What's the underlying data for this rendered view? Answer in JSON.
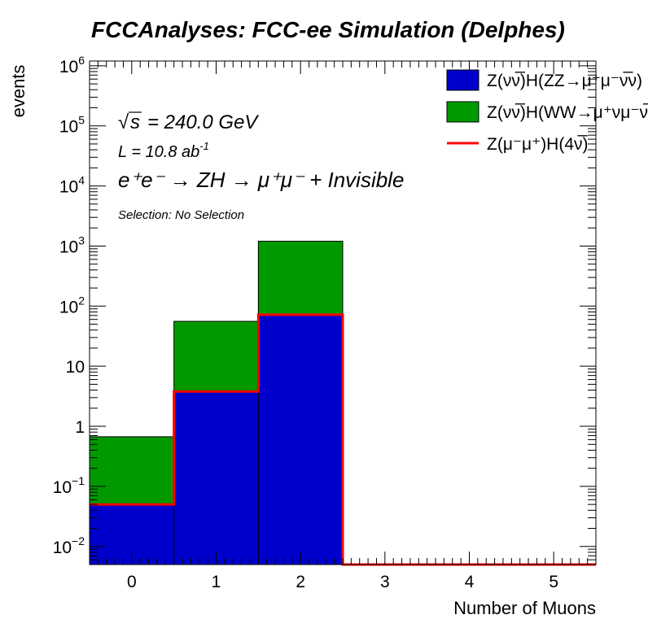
{
  "chart_data": {
    "type": "bar",
    "stacked": true,
    "log_y": true,
    "title": "FCCAnalyses: FCC-ee Simulation (Delphes)",
    "xlabel": "Number of Muons",
    "ylabel": "events",
    "xlim": [
      -0.5,
      5.5
    ],
    "ylim": [
      0.005,
      1200000
    ],
    "x_ticks": [
      "0",
      "1",
      "2",
      "3",
      "4",
      "5"
    ],
    "y_ticks": [
      {
        "value": 0.01,
        "base": "10",
        "exp": "−2"
      },
      {
        "value": 0.1,
        "base": "10",
        "exp": "−1"
      },
      {
        "value": 1,
        "base": "1",
        "exp": ""
      },
      {
        "value": 10,
        "base": "10",
        "exp": ""
      },
      {
        "value": 100,
        "base": "10",
        "exp": "2"
      },
      {
        "value": 1000,
        "base": "10",
        "exp": "3"
      },
      {
        "value": 10000,
        "base": "10",
        "exp": "4"
      },
      {
        "value": 100000,
        "base": "10",
        "exp": "5"
      },
      {
        "value": 1000000,
        "base": "10",
        "exp": "6"
      }
    ],
    "categories": [
      0,
      1,
      2,
      3,
      4,
      5
    ],
    "series": [
      {
        "name": "Z(νν̅)H(ZZ→μ⁺μ⁻ν̅ν)",
        "kind": "stack",
        "color": "#0000cc",
        "values": [
          0.05,
          3.8,
          72,
          0,
          0,
          0
        ]
      },
      {
        "name": "Z(νν̅)H(WW→μ⁺νμ⁻ν̅)",
        "kind": "stack",
        "color": "#009900",
        "values": [
          0.62,
          52,
          1130,
          0,
          0,
          0
        ]
      },
      {
        "name": "Z(μ⁻μ⁺)H(4ν̅)",
        "kind": "line",
        "color": "#ff0000",
        "values": [
          0.05,
          3.8,
          72,
          0,
          0,
          0
        ]
      }
    ],
    "legend_position": "top-right",
    "grid": false,
    "annotations": {
      "sqrt_s": "s",
      "energy": "= 240.0 GeV",
      "lumi": "L = 10.8 ab",
      "lumi_exp": "-1",
      "process": "e⁺e⁻ → ZH → μ⁺μ⁻ + Invisible",
      "selection": "Selection: No Selection"
    }
  }
}
